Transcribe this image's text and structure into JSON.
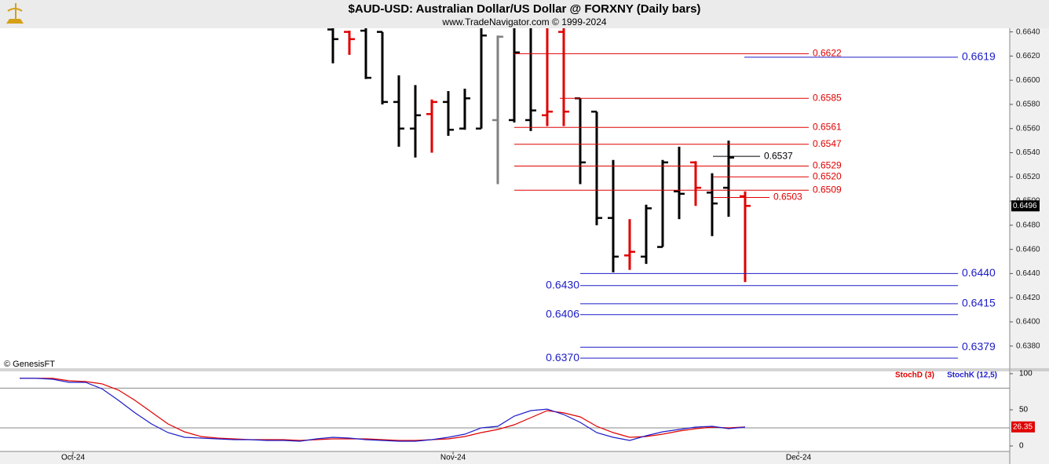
{
  "chart_data": [
    {
      "type": "ohlc",
      "title": "$AUD-USD:  Australian Dollar/US Dollar @ FORXNY  (Daily bars)",
      "subtitle": "www.TradeNavigator.com © 1999-2024",
      "annotation": "© GenesisFT",
      "x": [
        0,
        1,
        2,
        3,
        4,
        5,
        6,
        7,
        8,
        9,
        10,
        11,
        12,
        13,
        14,
        15,
        16,
        17,
        18,
        19,
        20,
        21,
        22,
        23,
        24,
        25
      ],
      "open": [
        0.6642,
        0.664,
        0.6641,
        0.664,
        0.6582,
        0.656,
        0.6572,
        0.6582,
        0.656,
        0.656,
        0.6567,
        0.6567,
        0.6567,
        0.6571,
        0.664,
        0.6585,
        0.6574,
        0.6486,
        0.6455,
        0.6454,
        0.6462,
        0.6508,
        0.6532,
        0.6507,
        0.6511,
        0.6504
      ],
      "high": [
        0.6646,
        0.6641,
        0.6646,
        0.664,
        0.6604,
        0.6596,
        0.6584,
        0.6591,
        0.6593,
        0.6647,
        0.6637,
        0.6648,
        0.6648,
        0.6648,
        0.6648,
        0.6585,
        0.6574,
        0.6534,
        0.6485,
        0.6497,
        0.6534,
        0.6545,
        0.6533,
        0.6523,
        0.655,
        0.6508
      ],
      "low": [
        0.6614,
        0.6621,
        0.6601,
        0.658,
        0.6545,
        0.6536,
        0.654,
        0.6554,
        0.6559,
        0.656,
        0.6514,
        0.6565,
        0.6558,
        0.6562,
        0.6562,
        0.6514,
        0.648,
        0.6441,
        0.6443,
        0.6448,
        0.6462,
        0.6485,
        0.6496,
        0.6471,
        0.6487,
        0.6433
      ],
      "close": [
        0.6634,
        0.6634,
        0.6602,
        0.6582,
        0.656,
        0.6571,
        0.6582,
        0.6559,
        0.6585,
        0.6637,
        0.6636,
        0.6623,
        0.6575,
        0.6574,
        0.6574,
        0.6532,
        0.6486,
        0.6454,
        0.6458,
        0.6494,
        0.6532,
        0.6506,
        0.6511,
        0.6498,
        0.6536,
        0.6496
      ],
      "bar_colors": [
        "#000000",
        "#e00000",
        "#000000",
        "#000000",
        "#000000",
        "#000000",
        "#e00000",
        "#000000",
        "#000000",
        "#000000",
        "#808080",
        "#000000",
        "#000000",
        "#e00000",
        "#e00000",
        "#000000",
        "#000000",
        "#000000",
        "#e00000",
        "#000000",
        "#000000",
        "#000000",
        "#e00000",
        "#000000",
        "#000000",
        "#e00000"
      ],
      "ylim": [
        0.6361,
        0.6643
      ],
      "yticks": [
        {
          "value": 0.638,
          "label": "0.6380"
        },
        {
          "value": 0.64,
          "label": "0.6400"
        },
        {
          "value": 0.642,
          "label": "0.6420"
        },
        {
          "value": 0.644,
          "label": "0.6440"
        },
        {
          "value": 0.646,
          "label": "0.6460"
        },
        {
          "value": 0.648,
          "label": "0.6480"
        },
        {
          "value": 0.65,
          "label": "0.6500"
        },
        {
          "value": 0.652,
          "label": "0.6520"
        },
        {
          "value": 0.654,
          "label": "0.6540"
        },
        {
          "value": 0.656,
          "label": "0.6560"
        },
        {
          "value": 0.658,
          "label": "0.6580"
        },
        {
          "value": 0.66,
          "label": "0.6600"
        },
        {
          "value": 0.662,
          "label": "0.6620"
        },
        {
          "value": 0.664,
          "label": "0.6640"
        }
      ],
      "xlim": [
        -20.19,
        41.05
      ],
      "xticks": [
        {
          "value": -15.76,
          "label": "Oct-24"
        },
        {
          "value": 7.29,
          "label": "Nov-24"
        },
        {
          "value": 28.24,
          "label": "Dec-24"
        }
      ],
      "levels": [
        {
          "value": 0.6622,
          "color": "#e00000"
        },
        {
          "value": 0.6585,
          "color": "#e00000"
        },
        {
          "value": 0.6561,
          "color": "#e00000"
        },
        {
          "value": 0.6547,
          "color": "#e00000"
        },
        {
          "value": 0.6529,
          "color": "#e00000"
        },
        {
          "value": 0.652,
          "label": "0.6520",
          "color": "#e00000"
        },
        {
          "value": 0.6509,
          "color": "#e00000"
        },
        {
          "value": 0.6503,
          "color": "#e00000"
        },
        {
          "value": 0.6537,
          "color": "#000000"
        },
        {
          "value": 0.6619,
          "color": "#1c1cc8"
        },
        {
          "value": 0.644,
          "label": "0.6440",
          "color": "#1c1cc8"
        },
        {
          "value": 0.643,
          "label": "0.6430",
          "color": "#1c1cc8"
        },
        {
          "value": 0.6415,
          "color": "#1c1cc8"
        },
        {
          "value": 0.6406,
          "color": "#1c1cc8"
        },
        {
          "value": 0.6379,
          "color": "#1c1cc8"
        },
        {
          "value": 0.637,
          "label": "0.6370",
          "color": "#1c1cc8"
        }
      ]
    },
    {
      "type": "line",
      "x": [
        -19,
        -18,
        -17,
        -16,
        -15,
        -14,
        -13,
        -12,
        -11,
        -10,
        -9,
        -8,
        -7,
        -6,
        -5,
        -4,
        -3,
        -2,
        -1,
        0,
        1,
        2,
        3,
        4,
        5,
        6,
        7,
        8,
        9,
        10,
        11,
        12,
        13,
        14,
        15,
        16,
        17,
        18,
        19,
        20,
        21,
        22,
        23,
        24,
        25
      ],
      "series": [
        {
          "name": "StochD (3)",
          "color": "#e00000",
          "values": [
            93.5,
            93.5,
            93.5,
            90.2,
            89.1,
            85.9,
            77.2,
            63,
            46.7,
            30.4,
            19.6,
            13,
            10.9,
            9.8,
            8.7,
            8.7,
            8.7,
            7.6,
            8.7,
            9.8,
            9.8,
            9.8,
            8.7,
            7.6,
            7.6,
            8.7,
            9.8,
            13,
            18.5,
            22.8,
            29.3,
            39.1,
            48.9,
            45.7,
            40.2,
            27.2,
            18.5,
            12,
            13,
            16.3,
            20.7,
            23.9,
            26.1,
            25,
            26.35
          ]
        },
        {
          "name": "StochK (12,5)",
          "color": "#1c1cc8",
          "values": [
            93.5,
            93.5,
            92.4,
            88,
            88,
            79,
            63,
            45.7,
            30.4,
            18.5,
            12,
            10.9,
            9.8,
            8.7,
            8.7,
            7.6,
            7.6,
            6.5,
            9.8,
            12,
            10.9,
            8.7,
            7.6,
            6.5,
            6.5,
            8.7,
            12,
            16.3,
            25,
            27.2,
            41.3,
            48.9,
            51,
            43.5,
            32.6,
            18.5,
            12,
            7.6,
            14.1,
            19.6,
            22.8,
            26.1,
            27.2,
            23.9,
            26.1
          ]
        }
      ],
      "ylim": [
        -7.6,
        104.3
      ],
      "yticks": [
        0,
        50,
        100
      ],
      "hlines": [
        80,
        25
      ],
      "xlim": [
        -20.19,
        41.05
      ]
    }
  ]
}
